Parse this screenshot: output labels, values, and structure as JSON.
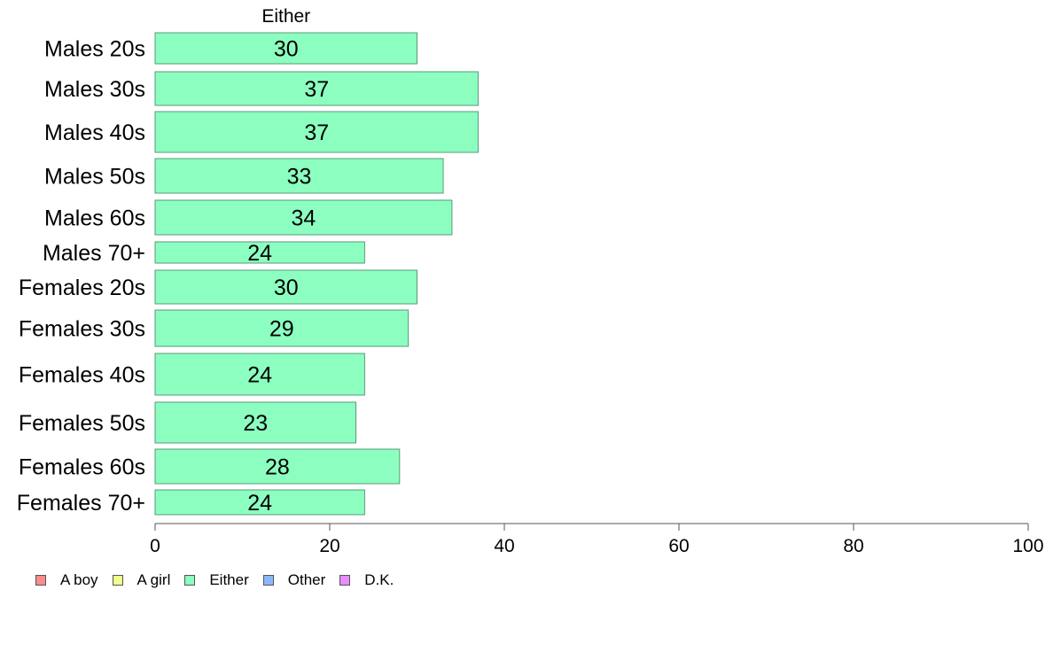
{
  "chart_data": {
    "type": "bar",
    "orientation": "horizontal",
    "title": "Either",
    "categories": [
      "Males 20s",
      "Males 30s",
      "Males 40s",
      "Males 50s",
      "Males 60s",
      "Males 70+",
      "Females 20s",
      "Females 30s",
      "Females 40s",
      "Females 50s",
      "Females 60s",
      "Females 70+"
    ],
    "series": [
      {
        "name": "Either",
        "values": [
          30,
          37,
          37,
          33,
          34,
          24,
          30,
          29,
          24,
          23,
          28,
          24
        ]
      }
    ],
    "data_labels": [
      "30",
      "37",
      "37",
      "33",
      "34",
      "24",
      "30",
      "29",
      "24",
      "23",
      "28",
      "24"
    ],
    "xlim": [
      0,
      100
    ],
    "xticks": [
      0,
      20,
      40,
      60,
      80,
      100
    ],
    "grid": false,
    "legend_position": "bottom-left",
    "bar_color": "#8cffc0",
    "bar_border_color": "#5a9a7a"
  },
  "legend": {
    "items": [
      {
        "label": "A boy",
        "color": "#ff8c8c"
      },
      {
        "label": "A girl",
        "color": "#eeff8c"
      },
      {
        "label": "Either",
        "color": "#8cffc0"
      },
      {
        "label": "Other",
        "color": "#8cb8ff"
      },
      {
        "label": "D.K.",
        "color": "#e88cff"
      }
    ]
  }
}
